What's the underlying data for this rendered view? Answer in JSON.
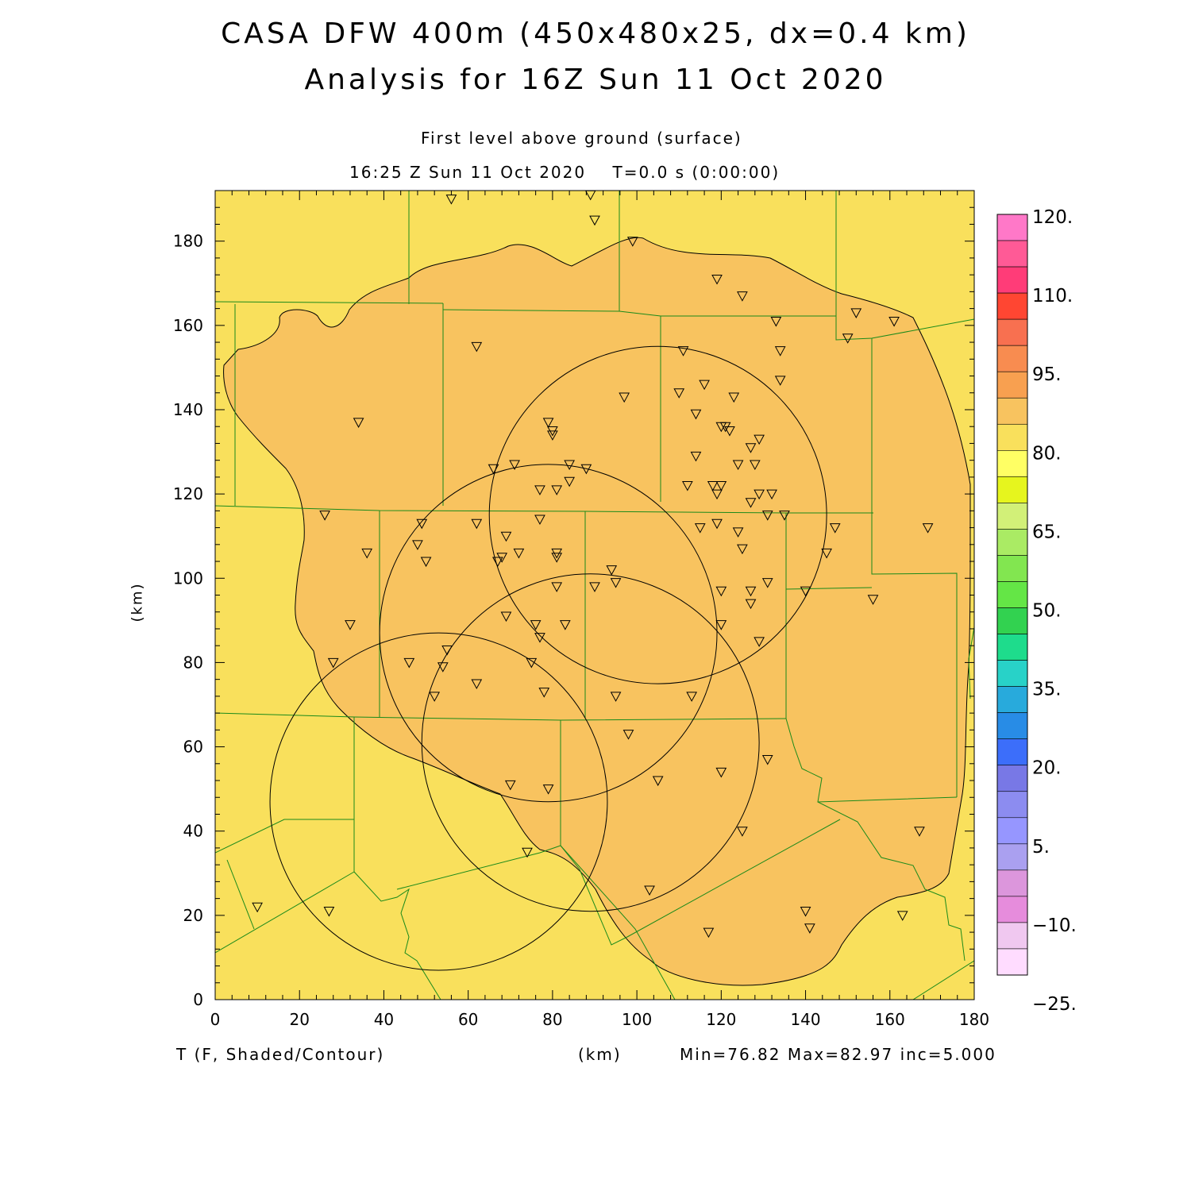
{
  "title": {
    "line1": "CASA DFW 400m (450x480x25, dx=0.4 km)",
    "line2": "Analysis for 16Z Sun 11 Oct 2020"
  },
  "subtitle": {
    "level": "First level above ground (surface)",
    "time": "16:25 Z Sun 11 Oct 2020    T=0.0 s (0:00:00)"
  },
  "axes": {
    "x_label": "(km)",
    "y_label": "(km)",
    "x_ticks": [
      "0",
      "20",
      "40",
      "60",
      "80",
      "100",
      "120",
      "140",
      "160",
      "180"
    ],
    "y_ticks": [
      "0",
      "20",
      "40",
      "60",
      "80",
      "100",
      "120",
      "140",
      "160",
      "180"
    ],
    "x_range": [
      0,
      180
    ],
    "y_range": [
      0,
      192
    ]
  },
  "footer": {
    "variable": "T (F, Shaded/Contour)",
    "units": "(km)",
    "stats": "Min=76.82 Max=82.97 inc=5.000"
  },
  "colorbar": {
    "labels": [
      "120.",
      "110.",
      "95.",
      "80.",
      "65.",
      "50.",
      "35.",
      "20.",
      "5.",
      "−10.",
      "−25."
    ],
    "colors_top_to_bottom": [
      "#ff78c8",
      "#ff5a96",
      "#ff3c78",
      "#ff4632",
      "#f87050",
      "#f88c50",
      "#f8a050",
      "#f8c35f",
      "#f9e05c",
      "#ffff64",
      "#e6f51e",
      "#d2f078",
      "#aaeb64",
      "#82e650",
      "#64e646",
      "#32d250",
      "#1edc8c",
      "#28d2c8",
      "#28aadc",
      "#288ce6",
      "#3c6efa",
      "#7878e6",
      "#8c8cf0",
      "#9696ff",
      "#aaa0f0",
      "#dc96dc",
      "#e68cdc",
      "#f0c8f0",
      "#ffdcff"
    ]
  },
  "chart_data": {
    "type": "heatmap",
    "variable": "T",
    "units": "F",
    "min": 76.82,
    "max": 82.97,
    "contour_interval": 5.0,
    "field_colors": {
      "below_80": "#f9e05c",
      "80_to_85": "#f8c35f"
    },
    "radar_rings": [
      {
        "center_km": [
          105,
          115
        ],
        "radius_km": 40
      },
      {
        "center_km": [
          79,
          87
        ],
        "radius_km": 40
      },
      {
        "center_km": [
          89,
          61
        ],
        "radius_km": 40
      },
      {
        "center_km": [
          53,
          47
        ],
        "radius_km": 40
      }
    ],
    "stations_km": [
      [
        56,
        190
      ],
      [
        89,
        191
      ],
      [
        90,
        185
      ],
      [
        99,
        180
      ],
      [
        119,
        171
      ],
      [
        125,
        167
      ],
      [
        133,
        161
      ],
      [
        152,
        163
      ],
      [
        161,
        161
      ],
      [
        150,
        157
      ],
      [
        62,
        155
      ],
      [
        111,
        154
      ],
      [
        134,
        154
      ],
      [
        134,
        147
      ],
      [
        34,
        137
      ],
      [
        110,
        144
      ],
      [
        116,
        146
      ],
      [
        97,
        143
      ],
      [
        123,
        143
      ],
      [
        114,
        139
      ],
      [
        79,
        137
      ],
      [
        80,
        135
      ],
      [
        80,
        134
      ],
      [
        120,
        136
      ],
      [
        121,
        136
      ],
      [
        122,
        135
      ],
      [
        129,
        133
      ],
      [
        127,
        131
      ],
      [
        66,
        126
      ],
      [
        71,
        127
      ],
      [
        84,
        127
      ],
      [
        88,
        126
      ],
      [
        114,
        129
      ],
      [
        124,
        127
      ],
      [
        128,
        127
      ],
      [
        77,
        121
      ],
      [
        81,
        121
      ],
      [
        84,
        123
      ],
      [
        112,
        122
      ],
      [
        118,
        122
      ],
      [
        119,
        120
      ],
      [
        120,
        122
      ],
      [
        127,
        118
      ],
      [
        129,
        120
      ],
      [
        132,
        120
      ],
      [
        131,
        115
      ],
      [
        135,
        115
      ],
      [
        26,
        115
      ],
      [
        49,
        113
      ],
      [
        62,
        113
      ],
      [
        77,
        114
      ],
      [
        115,
        112
      ],
      [
        119,
        113
      ],
      [
        124,
        111
      ],
      [
        125,
        107
      ],
      [
        147,
        112
      ],
      [
        169,
        112
      ],
      [
        36,
        106
      ],
      [
        48,
        108
      ],
      [
        50,
        104
      ],
      [
        67,
        104
      ],
      [
        68,
        105
      ],
      [
        69,
        110
      ],
      [
        72,
        106
      ],
      [
        81,
        106
      ],
      [
        81,
        105
      ],
      [
        145,
        106
      ],
      [
        94,
        102
      ],
      [
        95,
        99
      ],
      [
        90,
        98
      ],
      [
        81,
        98
      ],
      [
        120,
        97
      ],
      [
        127,
        97
      ],
      [
        127,
        94
      ],
      [
        131,
        99
      ],
      [
        140,
        97
      ],
      [
        156,
        95
      ],
      [
        32,
        89
      ],
      [
        28,
        80
      ],
      [
        46,
        80
      ],
      [
        54,
        79
      ],
      [
        55,
        83
      ],
      [
        62,
        75
      ],
      [
        69,
        91
      ],
      [
        76,
        89
      ],
      [
        77,
        86
      ],
      [
        83,
        89
      ],
      [
        120,
        89
      ],
      [
        75,
        80
      ],
      [
        78,
        73
      ],
      [
        52,
        72
      ],
      [
        95,
        72
      ],
      [
        113,
        72
      ],
      [
        129,
        85
      ],
      [
        98,
        63
      ],
      [
        70,
        51
      ],
      [
        79,
        50
      ],
      [
        105,
        52
      ],
      [
        120,
        54
      ],
      [
        131,
        57
      ],
      [
        74,
        35
      ],
      [
        103,
        26
      ],
      [
        125,
        40
      ],
      [
        167,
        40
      ],
      [
        10,
        22
      ],
      [
        27,
        21
      ],
      [
        117,
        16
      ],
      [
        140,
        21
      ],
      [
        141,
        17
      ],
      [
        163,
        20
      ]
    ],
    "county_lines_note": "green county boundaries drawn over the field"
  }
}
